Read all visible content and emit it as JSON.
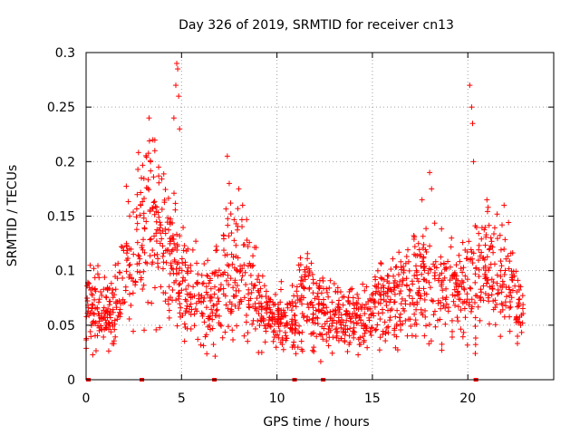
{
  "chart_data": {
    "type": "scatter",
    "title": "Day 326 of 2019, SRMTID for receiver cn13",
    "xlabel": "GPS time / hours",
    "ylabel": "SRMTID / TECUs",
    "xlim": [
      0,
      24.5
    ],
    "ylim": [
      0,
      0.3
    ],
    "x_ticks": [
      0,
      5,
      10,
      15,
      20
    ],
    "y_ticks": [
      0,
      0.05,
      0.1,
      0.15,
      0.2,
      0.25,
      0.3
    ],
    "x_tick_labels": [
      "0",
      "5",
      "10",
      "15",
      "20"
    ],
    "y_tick_labels": [
      "0",
      "0.05",
      "0.1",
      "0.15",
      "0.2",
      "0.25",
      "0.3"
    ],
    "grid": true,
    "marker": "+",
    "color": "#ff0000",
    "trend_profile": [
      [
        0.0,
        0.065
      ],
      [
        0.5,
        0.062
      ],
      [
        1.0,
        0.06
      ],
      [
        1.5,
        0.062
      ],
      [
        2.0,
        0.1
      ],
      [
        2.5,
        0.12
      ],
      [
        3.0,
        0.14
      ],
      [
        3.5,
        0.15
      ],
      [
        4.0,
        0.12
      ],
      [
        4.5,
        0.11
      ],
      [
        5.0,
        0.09
      ],
      [
        5.5,
        0.08
      ],
      [
        6.0,
        0.075
      ],
      [
        6.5,
        0.075
      ],
      [
        7.0,
        0.08
      ],
      [
        7.5,
        0.1
      ],
      [
        8.0,
        0.11
      ],
      [
        8.5,
        0.1
      ],
      [
        9.0,
        0.07
      ],
      [
        9.5,
        0.06
      ],
      [
        10.0,
        0.055
      ],
      [
        10.5,
        0.05
      ],
      [
        11.0,
        0.065
      ],
      [
        11.5,
        0.08
      ],
      [
        12.0,
        0.065
      ],
      [
        12.5,
        0.06
      ],
      [
        13.0,
        0.06
      ],
      [
        13.5,
        0.055
      ],
      [
        14.0,
        0.055
      ],
      [
        14.5,
        0.06
      ],
      [
        15.0,
        0.065
      ],
      [
        15.5,
        0.07
      ],
      [
        16.0,
        0.07
      ],
      [
        16.5,
        0.075
      ],
      [
        17.0,
        0.085
      ],
      [
        17.5,
        0.09
      ],
      [
        18.0,
        0.095
      ],
      [
        18.5,
        0.09
      ],
      [
        19.0,
        0.085
      ],
      [
        19.5,
        0.08
      ],
      [
        20.0,
        0.085
      ],
      [
        20.5,
        0.1
      ],
      [
        21.0,
        0.1
      ],
      [
        21.5,
        0.095
      ],
      [
        22.0,
        0.09
      ],
      [
        22.5,
        0.07
      ],
      [
        22.9,
        0.06
      ]
    ],
    "spike_points": [
      [
        3.3,
        0.24
      ],
      [
        3.5,
        0.22
      ],
      [
        3.6,
        0.21
      ],
      [
        3.8,
        0.195
      ],
      [
        4.6,
        0.24
      ],
      [
        4.75,
        0.29
      ],
      [
        4.8,
        0.285
      ],
      [
        4.7,
        0.27
      ],
      [
        4.85,
        0.26
      ],
      [
        4.9,
        0.23
      ],
      [
        7.4,
        0.205
      ],
      [
        7.5,
        0.18
      ],
      [
        8.0,
        0.175
      ],
      [
        8.2,
        0.16
      ],
      [
        18.0,
        0.19
      ],
      [
        18.1,
        0.175
      ],
      [
        17.6,
        0.165
      ],
      [
        20.1,
        0.27
      ],
      [
        20.2,
        0.25
      ],
      [
        20.25,
        0.235
      ],
      [
        20.3,
        0.2
      ],
      [
        21.0,
        0.165
      ],
      [
        21.9,
        0.16
      ]
    ],
    "gap_markers_x": [
      0.1,
      2.9,
      6.7,
      10.9,
      12.4,
      20.4
    ]
  }
}
